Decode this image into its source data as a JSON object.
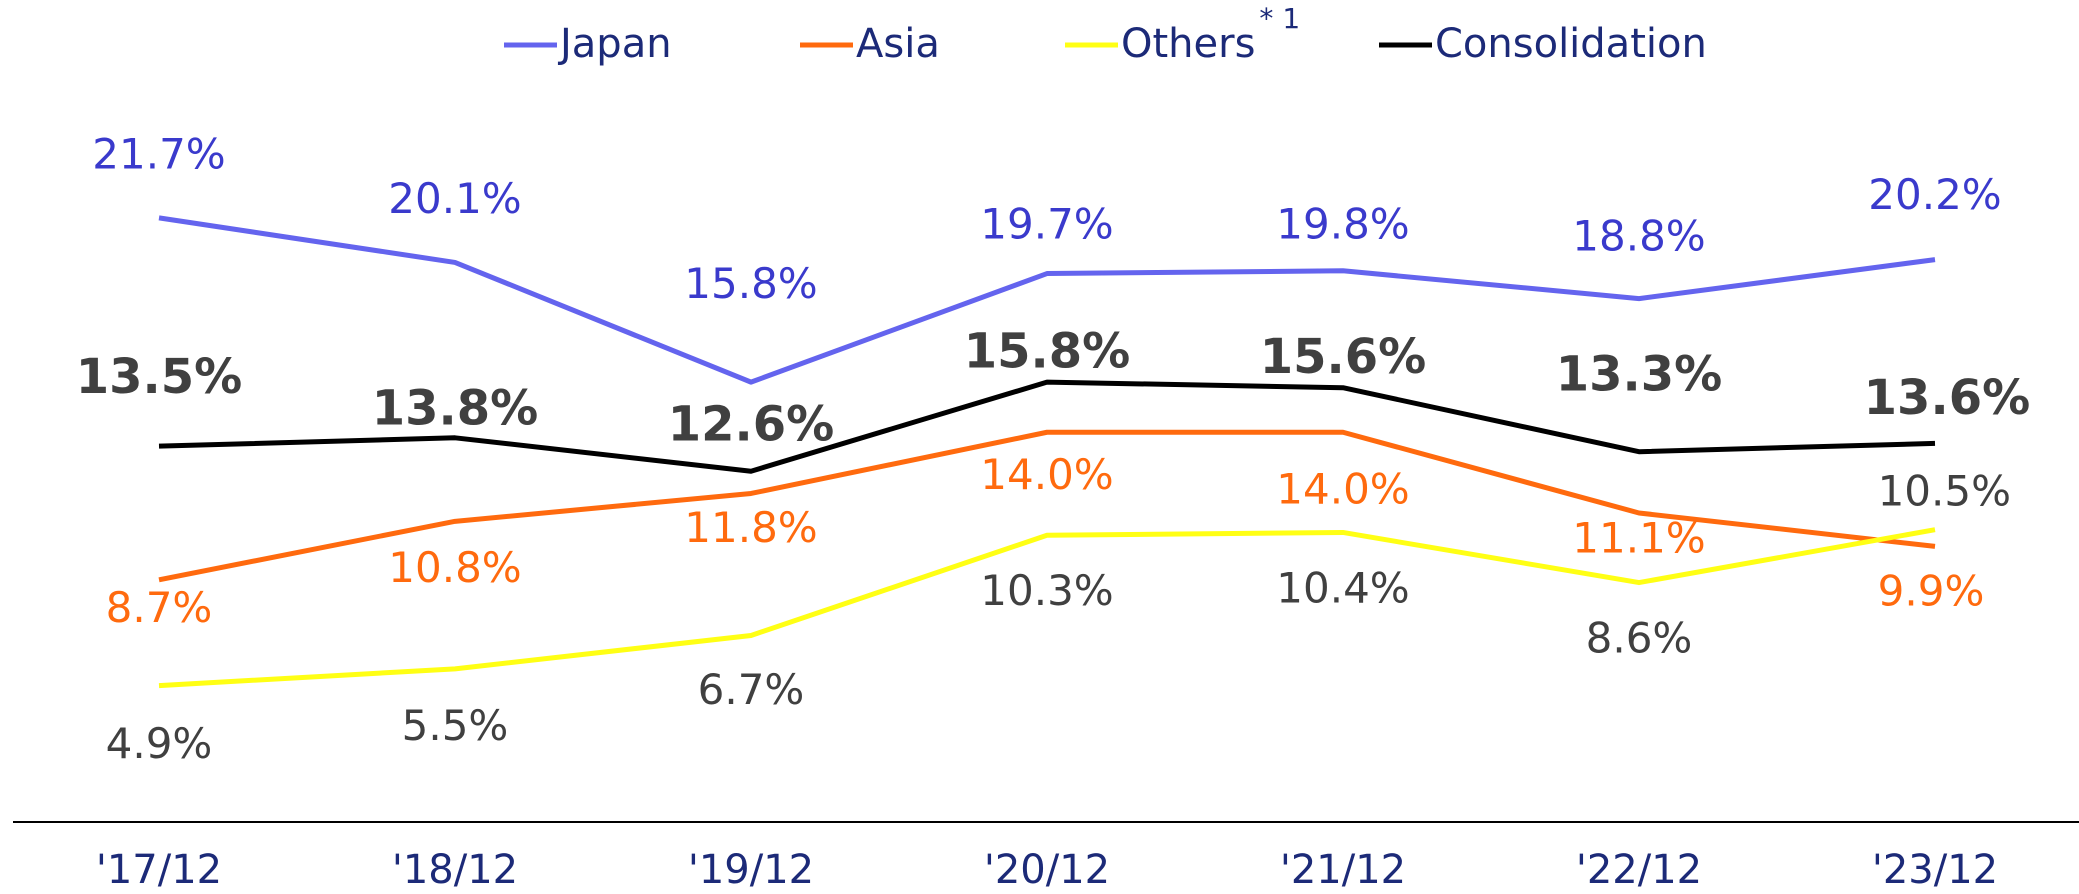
{
  "chart_data": {
    "type": "line",
    "categories": [
      "'17/12",
      "'18/12",
      "'19/12",
      "'20/12",
      "'21/12",
      "'22/12",
      "'23/12"
    ],
    "ylim": [
      0,
      25
    ],
    "series": [
      {
        "name": "Japan",
        "color": "#6464ee",
        "label_color": "#3a3acc",
        "values": [
          21.7,
          20.1,
          15.8,
          19.7,
          19.8,
          18.8,
          20.2
        ],
        "value_labels": [
          "21.7%",
          "20.1%",
          "15.8%",
          "19.7%",
          "19.8%",
          "18.8%",
          "20.2%"
        ]
      },
      {
        "name": "Asia",
        "color": "#ff6a0e",
        "label_color": "#ff6a0e",
        "values": [
          8.7,
          10.8,
          11.8,
          14.0,
          14.0,
          11.1,
          9.9
        ],
        "value_labels": [
          "8.7%",
          "10.8%",
          "11.8%",
          "14.0%",
          "14.0%",
          "11.1%",
          "9.9%"
        ]
      },
      {
        "name": "Others",
        "superscript": "* 1",
        "color": "#ffff14",
        "label_color": "#404040",
        "values": [
          4.9,
          5.5,
          6.7,
          10.3,
          10.4,
          8.6,
          10.5
        ],
        "value_labels": [
          "4.9%",
          "5.5%",
          "6.7%",
          "10.3%",
          "10.4%",
          "8.6%",
          "10.5%"
        ]
      },
      {
        "name": "Consolidation",
        "color": "#000000",
        "label_color": "#404040",
        "label_bold": true,
        "values": [
          13.5,
          13.8,
          12.6,
          15.8,
          15.6,
          13.3,
          13.6
        ],
        "value_labels": [
          "13.5%",
          "13.8%",
          "12.6%",
          "15.8%",
          "15.6%",
          "13.3%",
          "13.6%"
        ]
      }
    ]
  }
}
